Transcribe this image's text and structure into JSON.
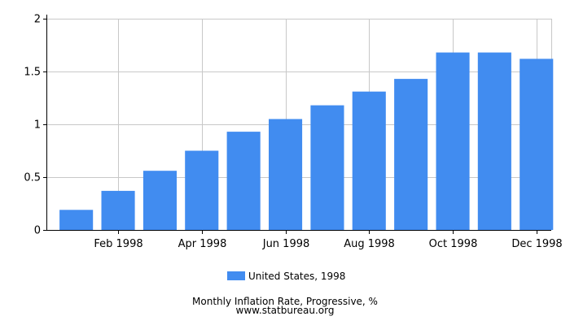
{
  "chart_data": {
    "type": "bar",
    "categories": [
      "Jan 1998",
      "Feb 1998",
      "Mar 1998",
      "Apr 1998",
      "May 1998",
      "Jun 1998",
      "Jul 1998",
      "Aug 1998",
      "Sep 1998",
      "Oct 1998",
      "Nov 1998",
      "Dec 1998"
    ],
    "x_tick_labels": [
      "",
      "Feb 1998",
      "",
      "Apr 1998",
      "",
      "Jun 1998",
      "",
      "Aug 1998",
      "",
      "Oct 1998",
      "",
      "Dec 1998"
    ],
    "series": [
      {
        "name": "United States, 1998",
        "values": [
          0.19,
          0.37,
          0.56,
          0.75,
          0.93,
          1.05,
          1.18,
          1.31,
          1.43,
          1.68,
          1.68,
          1.62
        ]
      }
    ],
    "ylim": [
      0,
      2
    ],
    "y_ticks": [
      0,
      0.5,
      1,
      1.5,
      2
    ],
    "y_tick_labels": [
      "0",
      "0.5",
      "1",
      "1.5",
      "2"
    ],
    "grid": true,
    "legend_position": "bottom-center",
    "bar_color": "#418cf0",
    "title": "Monthly Inflation Rate, Progressive, %",
    "subtitle": "www.statbureau.org"
  }
}
